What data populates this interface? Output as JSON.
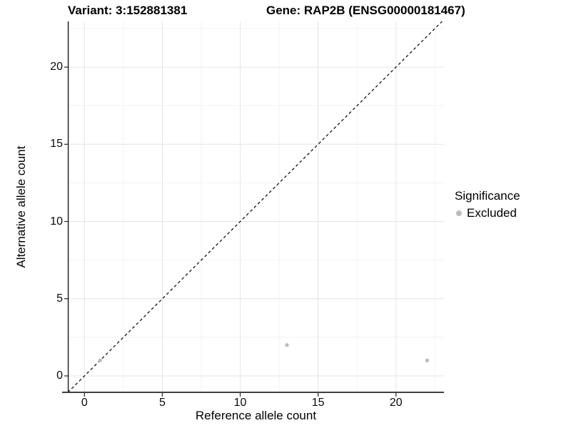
{
  "colors": {
    "background": "#ffffff",
    "point": "#bdbdbd",
    "grid_major": "#e4e4e4",
    "grid_minor": "#f2f2f2",
    "axis_line": "#1a1a1a",
    "axis_line_bottom": "#404040",
    "tick_mark": "#333333",
    "identity_line": "#000000",
    "text": "#000000"
  },
  "chart_data": {
    "type": "scatter",
    "title_left": "Variant: 3:152881381",
    "title_right": "Gene: RAP2B (ENSG00000181467)",
    "xlabel": "Reference allele count",
    "ylabel": "Alternative allele count",
    "xlim": [
      -1.07,
      23.08
    ],
    "ylim": [
      -1.11,
      22.96
    ],
    "x_major_ticks": [
      0,
      5,
      10,
      15,
      20
    ],
    "x_minor_ticks": [
      2.5,
      7.5,
      12.5,
      17.5,
      22.5
    ],
    "y_major_ticks": [
      0,
      5,
      10,
      15,
      20
    ],
    "y_minor_ticks": [
      2.5,
      7.5,
      12.5,
      17.5,
      22.5
    ],
    "grid": true,
    "identity_line": {
      "slope": 1,
      "intercept": 0,
      "style": "dashed",
      "color": "#000000"
    },
    "series": [
      {
        "name": "Excluded",
        "color": "#bdbdbd",
        "points": [
          [
            1,
            1
          ],
          [
            13,
            2
          ],
          [
            22,
            1
          ]
        ]
      }
    ],
    "legend": {
      "title": "Significance",
      "position": "right",
      "entries": [
        {
          "label": "Excluded",
          "color": "#bdbdbd"
        }
      ]
    }
  }
}
